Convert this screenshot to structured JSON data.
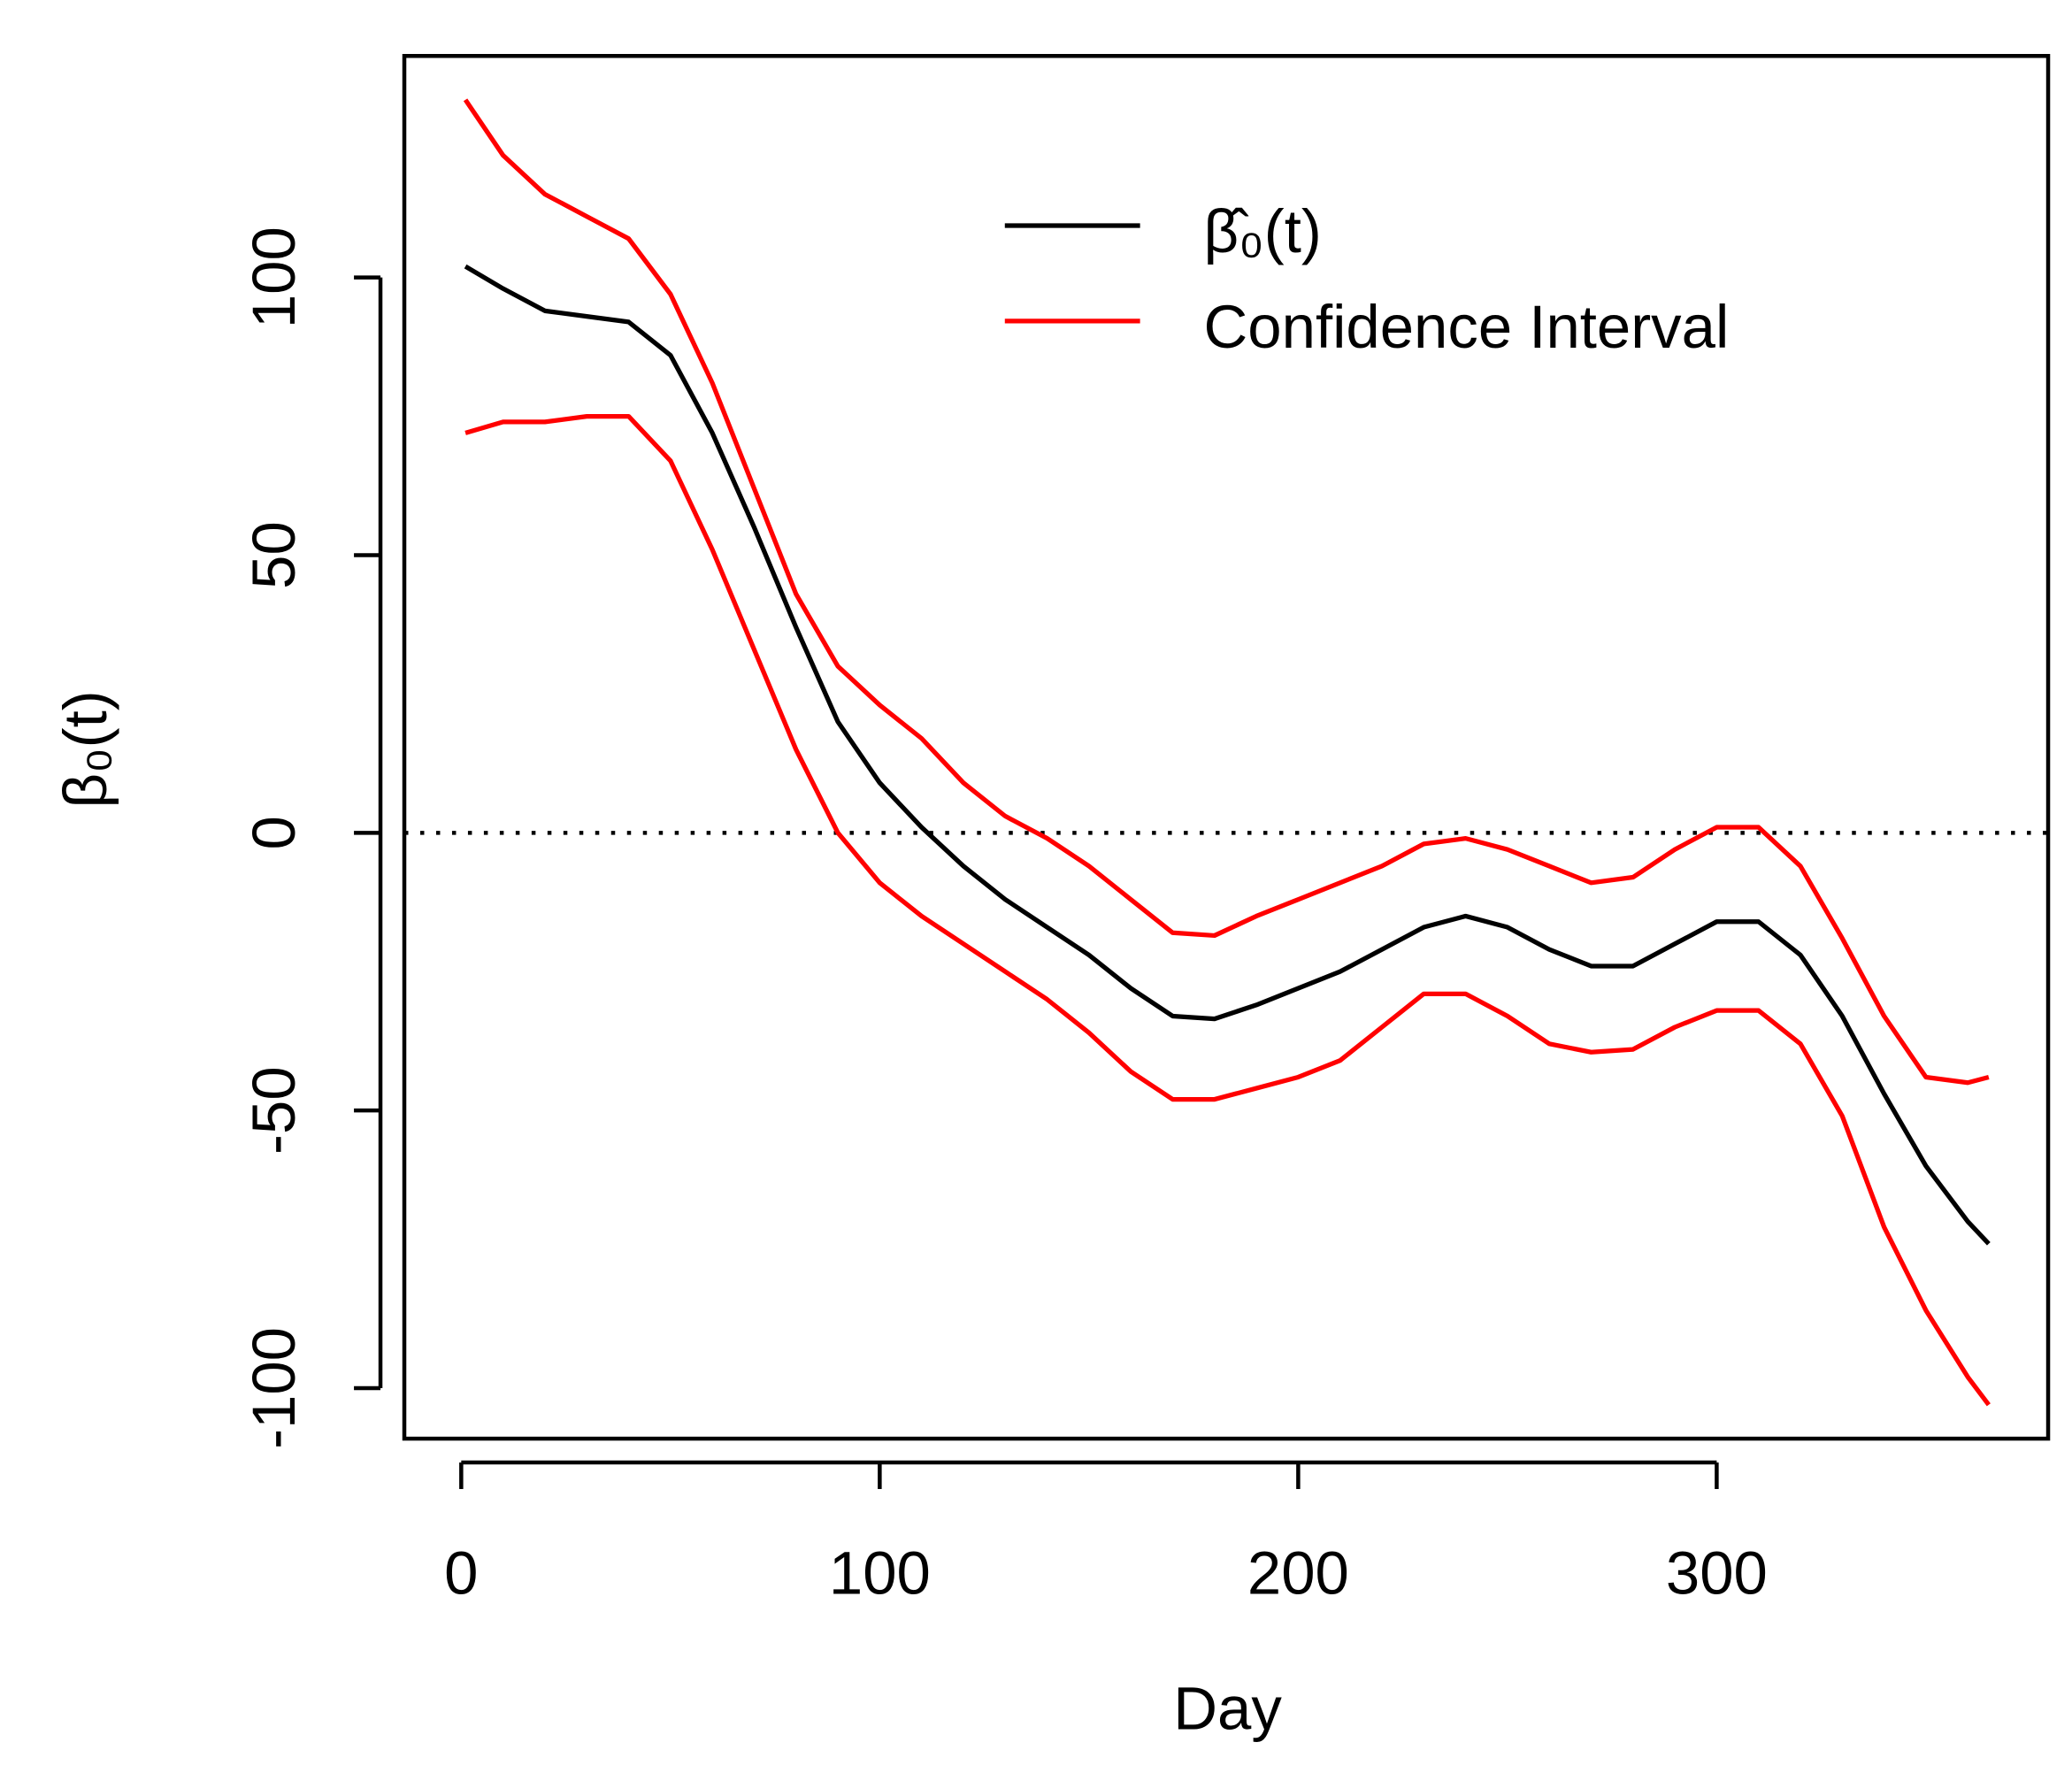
{
  "chart_data": {
    "type": "line",
    "x_label": "Day",
    "y_label": "β₀(t)",
    "x": [
      1,
      10,
      20,
      30,
      40,
      50,
      60,
      70,
      80,
      90,
      100,
      110,
      120,
      130,
      140,
      150,
      160,
      170,
      180,
      190,
      200,
      210,
      220,
      230,
      240,
      250,
      260,
      270,
      280,
      290,
      300,
      310,
      320,
      330,
      340,
      350,
      360,
      365
    ],
    "series": [
      {
        "name": "β̂₀(t)",
        "color": "#000000",
        "values": [
          102,
          98,
          94,
          93,
          92,
          86,
          72,
          55,
          37,
          20,
          9,
          1,
          -6,
          -12,
          -17,
          -22,
          -28,
          -33,
          -33.5,
          -31,
          -28,
          -25,
          -21,
          -17,
          -15,
          -17,
          -21,
          -24,
          -24,
          -20,
          -16,
          -16,
          -22,
          -33,
          -47,
          -60,
          -70,
          -74
        ]
      },
      {
        "name": "Confidence Interval",
        "color": "#ff0000",
        "values": [
          132,
          122,
          115,
          111,
          107,
          97,
          81,
          62,
          43,
          30,
          23,
          17,
          9,
          3,
          -1,
          -6,
          -12,
          -18,
          -18.5,
          -15,
          -12,
          -9,
          -6,
          -2,
          -1,
          -3,
          -6,
          -9,
          -8,
          -3,
          1,
          1,
          -6,
          -19,
          -33,
          -44,
          -45,
          -44
        ]
      },
      {
        "color": "#ff0000",
        "values": [
          72,
          74,
          74,
          75,
          75,
          67,
          51,
          33,
          15,
          0,
          -9,
          -15,
          -20,
          -25,
          -30,
          -36,
          -43,
          -48,
          -48,
          -46,
          -44,
          -41,
          -35,
          -29,
          -29,
          -33,
          -38,
          -39.5,
          -39,
          -35,
          -32,
          -32,
          -38,
          -51,
          -71,
          -86,
          -98,
          -103
        ]
      }
    ],
    "reference_line": 0,
    "xlim": [
      -13.6,
      379.2
    ],
    "ylim": [
      -109.1,
      139.9
    ],
    "xticks": [
      0,
      100,
      200,
      300
    ],
    "yticks": [
      -100,
      -50,
      0,
      50,
      100
    ],
    "legend": "top-right"
  }
}
